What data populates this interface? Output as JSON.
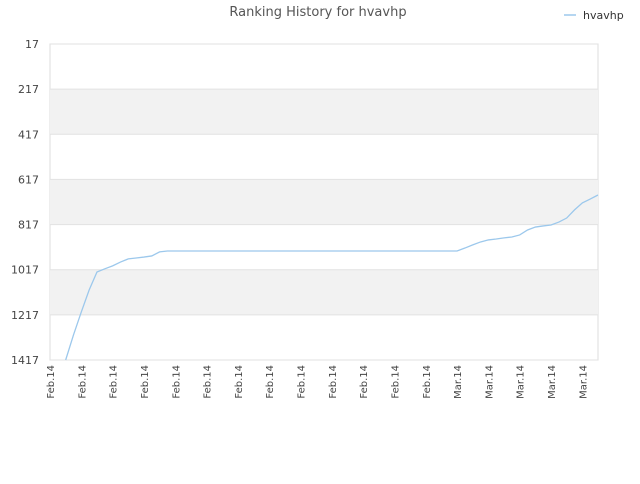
{
  "chart_data": {
    "type": "line",
    "title": "Ranking History for hvavhp",
    "categories": [
      "Feb.14",
      null,
      null,
      null,
      "Feb.14",
      null,
      null,
      null,
      "Feb.14",
      null,
      null,
      null,
      "Feb.14",
      null,
      null,
      null,
      "Feb.14",
      null,
      null,
      null,
      "Feb.14",
      null,
      null,
      null,
      "Feb.14",
      null,
      null,
      null,
      "Feb.14",
      null,
      null,
      null,
      "Feb.14",
      null,
      null,
      null,
      "Feb.14",
      null,
      null,
      null,
      "Feb.14",
      null,
      null,
      null,
      "Feb.14",
      null,
      null,
      null,
      "Feb.14",
      null,
      null,
      null,
      "Mar.14",
      null,
      null,
      null,
      "Mar.14",
      null,
      null,
      null,
      "Mar.14",
      null,
      null,
      null,
      "Mar.14",
      null,
      null,
      null,
      "Mar.14",
      null,
      null
    ],
    "series": [
      {
        "name": "hvavhp",
        "color": "#9cc8ec",
        "values": [
          null,
          null,
          1417,
          1306,
          1204,
          1107,
          1027,
          1013,
          1000,
          983,
          969,
          965,
          961,
          956,
          938,
          934,
          934,
          934,
          934,
          934,
          934,
          934,
          934,
          934,
          934,
          934,
          934,
          934,
          934,
          934,
          934,
          934,
          934,
          934,
          934,
          934,
          934,
          934,
          934,
          934,
          934,
          934,
          934,
          934,
          934,
          934,
          934,
          934,
          934,
          934,
          934,
          934,
          934,
          921,
          907,
          894,
          885,
          881,
          876,
          872,
          863,
          841,
          828,
          823,
          819,
          806,
          788,
          752,
          721,
          704,
          686
        ]
      }
    ],
    "ylim": [
      17,
      1417
    ],
    "yticks": [
      17,
      217,
      417,
      617,
      817,
      1017,
      1217,
      1417
    ],
    "y_inverted": true,
    "grid": true,
    "banded": true,
    "legend": "upper right"
  }
}
